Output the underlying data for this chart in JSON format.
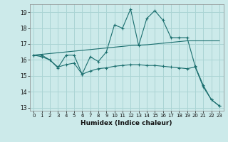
{
  "xlabel": "Humidex (Indice chaleur)",
  "ylabel": "",
  "bg_color": "#cceaea",
  "grid_color": "#aad4d4",
  "line_color": "#1a6e6e",
  "xlim": [
    -0.5,
    23.5
  ],
  "ylim": [
    12.8,
    19.5
  ],
  "yticks": [
    13,
    14,
    15,
    16,
    17,
    18,
    19
  ],
  "xticks": [
    0,
    1,
    2,
    3,
    4,
    5,
    6,
    7,
    8,
    9,
    10,
    11,
    12,
    13,
    14,
    15,
    16,
    17,
    18,
    19,
    20,
    21,
    22,
    23
  ],
  "line1_x": [
    0,
    1,
    2,
    3,
    4,
    5,
    6,
    7,
    8,
    9,
    10,
    11,
    12,
    13,
    14,
    15,
    16,
    17,
    18,
    19,
    20,
    21,
    22,
    23
  ],
  "line1_y": [
    16.3,
    16.3,
    16.0,
    15.5,
    16.3,
    16.3,
    15.1,
    16.2,
    15.9,
    16.5,
    18.2,
    18.0,
    19.2,
    16.9,
    18.6,
    19.1,
    18.5,
    17.4,
    17.4,
    17.4,
    15.6,
    14.4,
    13.5,
    13.1
  ],
  "line2_x": [
    0,
    1,
    2,
    3,
    4,
    5,
    6,
    7,
    8,
    9,
    10,
    11,
    12,
    13,
    14,
    15,
    16,
    17,
    18,
    19,
    20,
    21,
    22,
    23
  ],
  "line2_y": [
    16.3,
    16.35,
    16.4,
    16.45,
    16.5,
    16.55,
    16.6,
    16.65,
    16.7,
    16.75,
    16.8,
    16.85,
    16.9,
    16.92,
    16.95,
    17.0,
    17.05,
    17.1,
    17.15,
    17.2,
    17.2,
    17.2,
    17.2,
    17.2
  ],
  "line3_x": [
    0,
    1,
    2,
    3,
    4,
    5,
    6,
    7,
    8,
    9,
    10,
    11,
    12,
    13,
    14,
    15,
    16,
    17,
    18,
    19,
    20,
    21,
    22,
    23
  ],
  "line3_y": [
    16.3,
    16.2,
    16.0,
    15.55,
    15.7,
    15.8,
    15.1,
    15.3,
    15.45,
    15.5,
    15.6,
    15.65,
    15.7,
    15.7,
    15.65,
    15.65,
    15.6,
    15.55,
    15.5,
    15.45,
    15.55,
    14.3,
    13.5,
    13.1
  ]
}
